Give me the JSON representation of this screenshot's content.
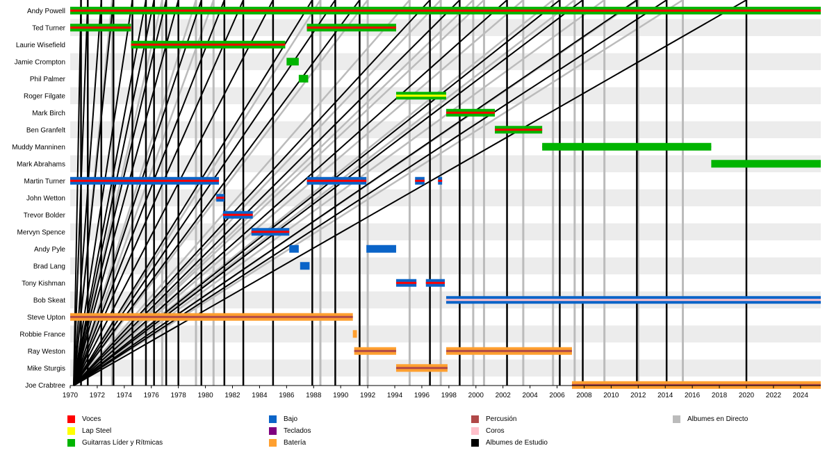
{
  "chart_data": {
    "type": "timeline",
    "x_range": [
      1970,
      2025.5
    ],
    "x_ticks": [
      "1970",
      "1972",
      "1974",
      "1976",
      "1978",
      "1980",
      "1982",
      "1984",
      "1986",
      "1988",
      "1990",
      "1992",
      "1994",
      "1996",
      "1998",
      "2000",
      "2002",
      "2004",
      "2006",
      "2008",
      "2010",
      "2012",
      "2014",
      "2016",
      "2018",
      "2020",
      "2022",
      "2024"
    ],
    "members": [
      "Andy Powell",
      "Ted Turner",
      "Laurie Wisefield",
      "Jamie Crompton",
      "Phil Palmer",
      "Roger Filgate",
      "Mark Birch",
      "Ben Granfelt",
      "Muddy Manninen",
      "Mark Abrahams",
      "Martin Turner",
      "John Wetton",
      "Trevor Bolder",
      "Mervyn Spence",
      "Andy Pyle",
      "Brad Lang",
      "Tony Kishman",
      "Bob Skeat",
      "Steve Upton",
      "Robbie France",
      "Ray Weston",
      "Mike Sturgis",
      "Joe Crabtree"
    ],
    "roles": {
      "voces": {
        "label": "Voces",
        "color": "#ff0000"
      },
      "lap": {
        "label": "Lap Steel",
        "color": "#ffff00"
      },
      "guit": {
        "label": "Guitarras Líder y Rítmicas",
        "color": "#00b400"
      },
      "bajo": {
        "label": "Bajo",
        "color": "#0a64c8"
      },
      "tecl": {
        "label": "Teclados",
        "color": "#800080"
      },
      "bat": {
        "label": "Batería",
        "color": "#ffa030"
      },
      "perc": {
        "label": "Percusión",
        "color": "#b04848"
      },
      "coros": {
        "label": "Coros",
        "color": "#ffc0cb"
      },
      "studio": {
        "label": "Albumes de Estudio",
        "color": "#000000"
      },
      "live": {
        "label": "Albumes en Directo",
        "color": "#bbbbbb"
      }
    },
    "periods": [
      {
        "member": 0,
        "start": 1970,
        "end": 2025.5,
        "base": "guit",
        "inner": "voces"
      },
      {
        "member": 1,
        "start": 1970,
        "end": 1974.5,
        "base": "guit",
        "inner": "voces"
      },
      {
        "member": 1,
        "start": 1987.5,
        "end": 1994.1,
        "base": "guit",
        "inner": "voces"
      },
      {
        "member": 2,
        "start": 1974.5,
        "end": 1985.9,
        "base": "guit",
        "inner": "voces"
      },
      {
        "member": 3,
        "start": 1986.0,
        "end": 1986.9,
        "base": "guit",
        "inner": null
      },
      {
        "member": 4,
        "start": 1986.9,
        "end": 1987.6,
        "base": "guit",
        "inner": null
      },
      {
        "member": 5,
        "start": 1994.1,
        "end": 1997.8,
        "base": "guit",
        "inner": "lap"
      },
      {
        "member": 6,
        "start": 1997.8,
        "end": 2001.4,
        "base": "guit",
        "inner": "voces"
      },
      {
        "member": 7,
        "start": 2001.4,
        "end": 2004.9,
        "base": "guit",
        "inner": "voces"
      },
      {
        "member": 8,
        "start": 2004.9,
        "end": 2017.4,
        "base": "guit",
        "inner": "guit"
      },
      {
        "member": 9,
        "start": 2017.4,
        "end": 2025.5,
        "base": "guit",
        "inner": null
      },
      {
        "member": 10,
        "start": 1970,
        "end": 1981.0,
        "base": "bajo",
        "inner": "voces"
      },
      {
        "member": 10,
        "start": 1987.5,
        "end": 1991.9,
        "base": "bajo",
        "inner": "voces"
      },
      {
        "member": 10,
        "start": 1995.5,
        "end": 1996.2,
        "base": "bajo",
        "inner": "voces"
      },
      {
        "member": 10,
        "start": 1997.2,
        "end": 1997.5,
        "base": "bajo",
        "inner": "voces"
      },
      {
        "member": 11,
        "start": 1980.8,
        "end": 1981.4,
        "base": "bajo",
        "inner": "voces"
      },
      {
        "member": 12,
        "start": 1981.3,
        "end": 1983.5,
        "base": "bajo",
        "inner": "voces"
      },
      {
        "member": 13,
        "start": 1983.4,
        "end": 1986.2,
        "base": "bajo",
        "inner": "voces"
      },
      {
        "member": 14,
        "start": 1986.2,
        "end": 1986.9,
        "base": "bajo",
        "inner": null
      },
      {
        "member": 14,
        "start": 1991.9,
        "end": 1994.1,
        "base": "bajo",
        "inner": null
      },
      {
        "member": 15,
        "start": 1987.0,
        "end": 1987.7,
        "base": "bajo",
        "inner": null
      },
      {
        "member": 16,
        "start": 1994.1,
        "end": 1995.6,
        "base": "bajo",
        "inner": "voces"
      },
      {
        "member": 16,
        "start": 1996.3,
        "end": 1997.7,
        "base": "bajo",
        "inner": "voces"
      },
      {
        "member": 17,
        "start": 1997.8,
        "end": 2025.5,
        "base": "bajo",
        "inner": "coros"
      },
      {
        "member": 18,
        "start": 1970,
        "end": 1990.9,
        "base": "bat",
        "inner": "perc"
      },
      {
        "member": 19,
        "start": 1990.9,
        "end": 1991.2,
        "base": "bat",
        "inner": null
      },
      {
        "member": 20,
        "start": 1991.0,
        "end": 1994.1,
        "base": "bat",
        "inner": "perc"
      },
      {
        "member": 20,
        "start": 1997.8,
        "end": 2007.1,
        "base": "bat",
        "inner": "perc"
      },
      {
        "member": 21,
        "start": 1994.1,
        "end": 1997.9,
        "base": "bat",
        "inner": "perc"
      },
      {
        "member": 22,
        "start": 2007.1,
        "end": 2025.5,
        "base": "bat",
        "inner": "perc"
      }
    ],
    "studio_albums": [
      1970.8,
      1971.3,
      1972.3,
      1973.2,
      1974.6,
      1975.6,
      1976.2,
      1977.1,
      1978.0,
      1979.7,
      1981.4,
      1982.8,
      1985.0,
      1987.9,
      1989.6,
      1991.4,
      1996.6,
      1998.8,
      2002.3,
      2006.2,
      2007.9,
      2011.9,
      2014.1,
      2020.0
    ],
    "live_albums": [
      1973.1,
      1976.8,
      1980.6,
      1979.3,
      1988.5,
      1992.0,
      1995.1,
      1997.4,
      1999.8,
      2000.6,
      2003.5,
      2005.7,
      2007.3,
      2009.5,
      2012.0,
      2015.3
    ]
  },
  "legend": [
    {
      "role": "voces",
      "label": "Voces"
    },
    {
      "role": "lap",
      "label": "Lap Steel"
    },
    {
      "role": "guit",
      "label": "Guitarras Líder y Rítmicas"
    },
    {
      "role": "bajo",
      "label": "Bajo"
    },
    {
      "role": "tecl",
      "label": "Teclados"
    },
    {
      "role": "bat",
      "label": "Batería"
    },
    {
      "role": "perc",
      "label": "Percusión"
    },
    {
      "role": "coros",
      "label": "Coros"
    },
    {
      "role": "studio",
      "label": "Albumes de Estudio"
    },
    {
      "role": "live",
      "label": "Albumes en Directo"
    }
  ]
}
